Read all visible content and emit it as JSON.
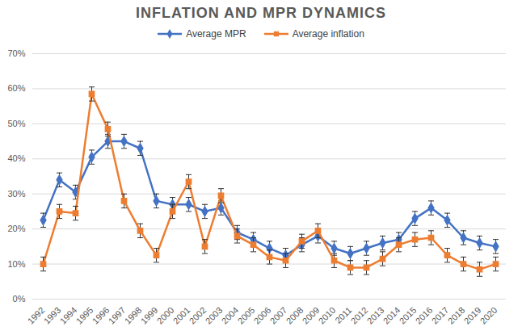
{
  "chart_data": {
    "type": "line",
    "title": "INFLATION AND MPR DYNAMICS",
    "categories": [
      "1992",
      "1993",
      "1994",
      "1995",
      "1996",
      "1997",
      "1998",
      "1999",
      "2000",
      "2001",
      "2002",
      "2003",
      "2004",
      "2005",
      "2006",
      "2007",
      "2008",
      "2009",
      "2010",
      "2011",
      "2012",
      "2013",
      "2014",
      "2015",
      "2016",
      "2017",
      "2018",
      "2019",
      "2020"
    ],
    "series": [
      {
        "name": "Average MPR",
        "color": "#4472c4",
        "marker": "diamond",
        "values": [
          22.5,
          34,
          30.5,
          40.5,
          45,
          45,
          43,
          28,
          27,
          27,
          25,
          26,
          19,
          17,
          14.5,
          12.5,
          15.5,
          18,
          14.5,
          13,
          14.5,
          16,
          17,
          23,
          26,
          22.5,
          17.5,
          16,
          15
        ],
        "errors": [
          2,
          2,
          2,
          2,
          2,
          2,
          2,
          2,
          2,
          2,
          2,
          2,
          2,
          2,
          2,
          2,
          2,
          2,
          2,
          2,
          2,
          2,
          2,
          2,
          2,
          2,
          2,
          2,
          2
        ]
      },
      {
        "name": "Average inflation",
        "color": "#ed7d31",
        "marker": "square",
        "values": [
          10,
          25,
          24.5,
          58.5,
          48.5,
          28,
          19.5,
          12.5,
          25,
          33.5,
          15,
          29.5,
          18,
          15.5,
          12,
          11,
          16.5,
          19.5,
          11,
          9,
          9,
          11.5,
          15.5,
          17,
          17.5,
          12.5,
          10,
          8.5,
          10
        ],
        "errors": [
          2,
          2,
          2,
          2,
          2,
          2,
          2,
          2,
          2,
          2,
          2,
          2,
          2,
          2,
          2,
          2,
          2,
          2,
          2,
          2,
          2,
          2,
          2,
          2,
          2,
          2,
          2,
          2,
          2
        ]
      }
    ],
    "ylim": [
      0,
      70
    ],
    "yticks": [
      {
        "value": 0,
        "label": "0%"
      },
      {
        "value": 10,
        "label": "10%"
      },
      {
        "value": 20,
        "label": "20%"
      },
      {
        "value": 30,
        "label": "30%"
      },
      {
        "value": 40,
        "label": "40%"
      },
      {
        "value": 50,
        "label": "50%"
      },
      {
        "value": 60,
        "label": "60%"
      },
      {
        "value": 70,
        "label": "70%"
      }
    ],
    "grid": true,
    "legend": "top"
  }
}
